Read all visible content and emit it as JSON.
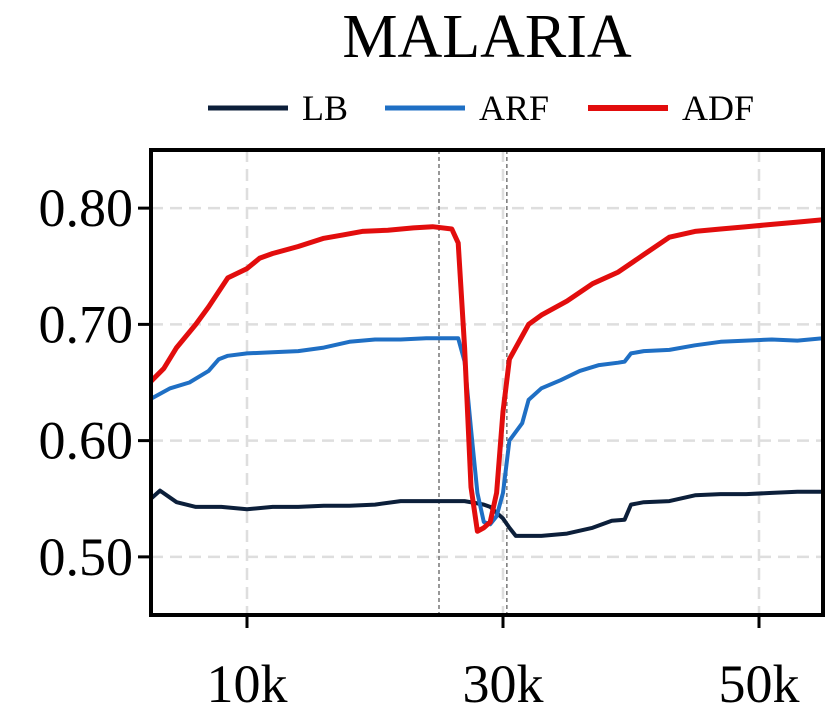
{
  "chart_data": {
    "type": "line",
    "title": "MALARIA",
    "xlabel": "",
    "ylabel": "",
    "xlim": [
      2500,
      55000
    ],
    "ylim": [
      0.45,
      0.85
    ],
    "grid": true,
    "legend_position": "top-center",
    "x_ticks": [
      {
        "value": 10000,
        "label": "10k"
      },
      {
        "value": 30000,
        "label": "30k"
      },
      {
        "value": 50000,
        "label": "50k"
      }
    ],
    "y_ticks": [
      {
        "value": 0.5,
        "label": "0.50"
      },
      {
        "value": 0.6,
        "label": "0.60"
      },
      {
        "value": 0.7,
        "label": "0.70"
      },
      {
        "value": 0.8,
        "label": "0.80"
      }
    ],
    "vertical_markers": [
      25000,
      30300
    ],
    "series": [
      {
        "name": "LB",
        "color": "#0c1f3a",
        "x": [
          2500,
          3200,
          4500,
          6000,
          8000,
          10000,
          12000,
          14000,
          16000,
          18000,
          20000,
          22000,
          24000,
          26000,
          27000,
          28000,
          28500,
          29000,
          29500,
          30000,
          30500,
          31000,
          32000,
          33000,
          35000,
          37000,
          38500,
          39500,
          40000,
          41000,
          43000,
          45000,
          47000,
          49000,
          51000,
          53000,
          55000
        ],
        "values": [
          0.55,
          0.557,
          0.547,
          0.543,
          0.543,
          0.541,
          0.543,
          0.543,
          0.544,
          0.544,
          0.545,
          0.548,
          0.548,
          0.548,
          0.548,
          0.546,
          0.545,
          0.543,
          0.538,
          0.533,
          0.525,
          0.518,
          0.518,
          0.518,
          0.52,
          0.525,
          0.531,
          0.532,
          0.545,
          0.547,
          0.548,
          0.553,
          0.554,
          0.554,
          0.555,
          0.556,
          0.556
        ]
      },
      {
        "name": "ARF",
        "color": "#1f6fc4",
        "x": [
          2500,
          4000,
          5500,
          7000,
          7800,
          8500,
          10000,
          12000,
          14000,
          16000,
          18000,
          20000,
          22000,
          24000,
          26000,
          26500,
          27000,
          27500,
          28000,
          28500,
          29000,
          29500,
          30000,
          30500,
          31500,
          32000,
          33000,
          34500,
          36000,
          37500,
          39000,
          39500,
          40000,
          41000,
          43000,
          45000,
          47000,
          49000,
          51000,
          53000,
          55000
        ],
        "values": [
          0.636,
          0.645,
          0.65,
          0.66,
          0.67,
          0.673,
          0.675,
          0.676,
          0.677,
          0.68,
          0.685,
          0.687,
          0.687,
          0.688,
          0.688,
          0.688,
          0.668,
          0.61,
          0.555,
          0.53,
          0.528,
          0.535,
          0.555,
          0.6,
          0.615,
          0.635,
          0.645,
          0.652,
          0.66,
          0.665,
          0.667,
          0.668,
          0.675,
          0.677,
          0.678,
          0.682,
          0.685,
          0.686,
          0.687,
          0.686,
          0.688
        ]
      },
      {
        "name": "ADF",
        "color": "#e20d0d",
        "x": [
          2500,
          3500,
          4500,
          6000,
          7000,
          8500,
          10000,
          11000,
          12000,
          14000,
          16000,
          17500,
          19000,
          21000,
          23000,
          24500,
          26000,
          26500,
          27000,
          27500,
          28000,
          28500,
          29000,
          29500,
          30000,
          30500,
          31000,
          31500,
          32000,
          33000,
          35000,
          37000,
          39000,
          41000,
          43000,
          45000,
          47000,
          49000,
          51000,
          53000,
          55000
        ],
        "values": [
          0.651,
          0.662,
          0.68,
          0.7,
          0.715,
          0.74,
          0.748,
          0.757,
          0.761,
          0.767,
          0.774,
          0.777,
          0.78,
          0.781,
          0.783,
          0.784,
          0.782,
          0.77,
          0.68,
          0.56,
          0.522,
          0.525,
          0.53,
          0.555,
          0.625,
          0.67,
          0.68,
          0.69,
          0.7,
          0.708,
          0.72,
          0.735,
          0.745,
          0.76,
          0.775,
          0.78,
          0.782,
          0.784,
          0.786,
          0.788,
          0.79
        ]
      }
    ]
  }
}
